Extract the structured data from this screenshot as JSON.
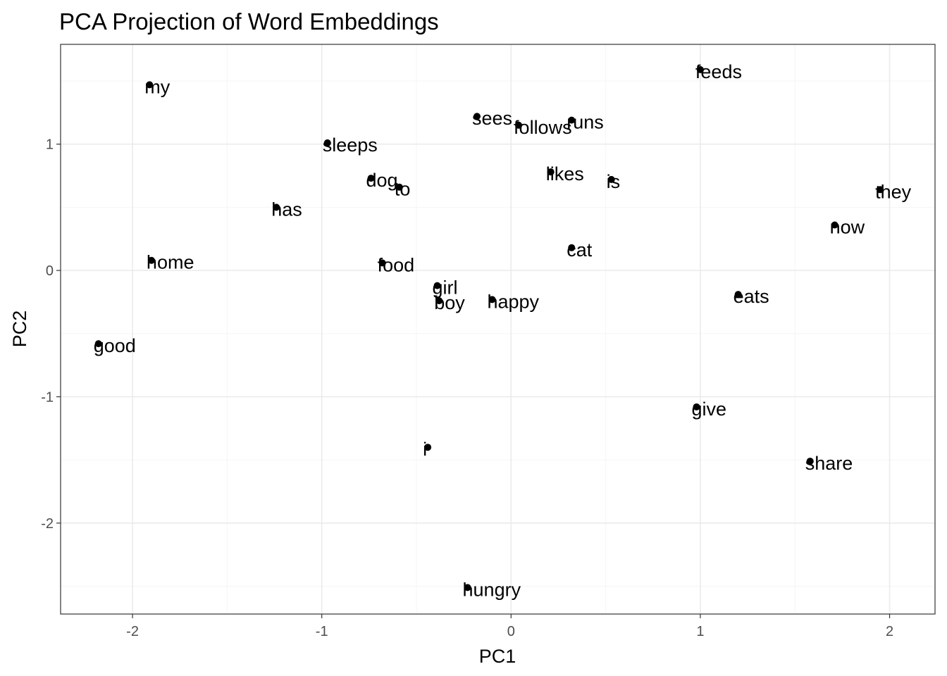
{
  "chart_data": {
    "type": "scatter",
    "title": "PCA Projection of Word Embeddings",
    "xlabel": "PC1",
    "ylabel": "PC2",
    "xlim": [
      -2.38,
      2.24
    ],
    "ylim": [
      -2.72,
      1.79
    ],
    "x_ticks": [
      -2,
      -1,
      0,
      1,
      2
    ],
    "x_tick_labels": [
      "-2",
      "-1",
      "0",
      "1",
      "2"
    ],
    "y_ticks": [
      -2,
      -1,
      0,
      1
    ],
    "y_tick_labels": [
      "-2",
      "-1",
      "0",
      "1"
    ],
    "x_minor_ticks": [
      -1.5,
      -0.5,
      0.5,
      1.5
    ],
    "y_minor_ticks": [
      -2.5,
      -1.5,
      -0.5,
      0.5,
      1.5
    ],
    "grid": true,
    "legend": "none",
    "points": [
      {
        "label": "my",
        "x": -1.91,
        "y": 1.47
      },
      {
        "label": "feeds",
        "x": 1.0,
        "y": 1.59
      },
      {
        "label": "sees",
        "x": -0.18,
        "y": 1.22
      },
      {
        "label": "follows",
        "x": 0.04,
        "y": 1.15
      },
      {
        "label": "runs",
        "x": 0.32,
        "y": 1.19
      },
      {
        "label": "sleeps",
        "x": -0.97,
        "y": 1.01
      },
      {
        "label": "dog",
        "x": -0.74,
        "y": 0.73
      },
      {
        "label": "to",
        "x": -0.59,
        "y": 0.66
      },
      {
        "label": "likes",
        "x": 0.21,
        "y": 0.78
      },
      {
        "label": "is",
        "x": 0.53,
        "y": 0.72
      },
      {
        "label": "they",
        "x": 1.95,
        "y": 0.64
      },
      {
        "label": "has",
        "x": -1.24,
        "y": 0.5
      },
      {
        "label": "now",
        "x": 1.71,
        "y": 0.36
      },
      {
        "label": "cat",
        "x": 0.32,
        "y": 0.18
      },
      {
        "label": "home",
        "x": -1.9,
        "y": 0.08
      },
      {
        "label": "food",
        "x": -0.68,
        "y": 0.06
      },
      {
        "label": "girl",
        "x": -0.39,
        "y": -0.12
      },
      {
        "label": "boy",
        "x": -0.38,
        "y": -0.24
      },
      {
        "label": "happy",
        "x": -0.1,
        "y": -0.23
      },
      {
        "label": "eats",
        "x": 1.2,
        "y": -0.19
      },
      {
        "label": "good",
        "x": -2.18,
        "y": -0.58
      },
      {
        "label": "give",
        "x": 0.98,
        "y": -1.08
      },
      {
        "label": "i",
        "x": -0.44,
        "y": -1.4
      },
      {
        "label": "share",
        "x": 1.58,
        "y": -1.51
      },
      {
        "label": "hungry",
        "x": -0.23,
        "y": -2.51
      }
    ]
  },
  "colors": {
    "background": "#ffffff",
    "panel_border": "#333333",
    "grid_major": "#ebebeb",
    "grid_minor": "#f5f5f5",
    "point": "#000000",
    "tick_text": "#4d4d4d",
    "text": "#000000"
  }
}
